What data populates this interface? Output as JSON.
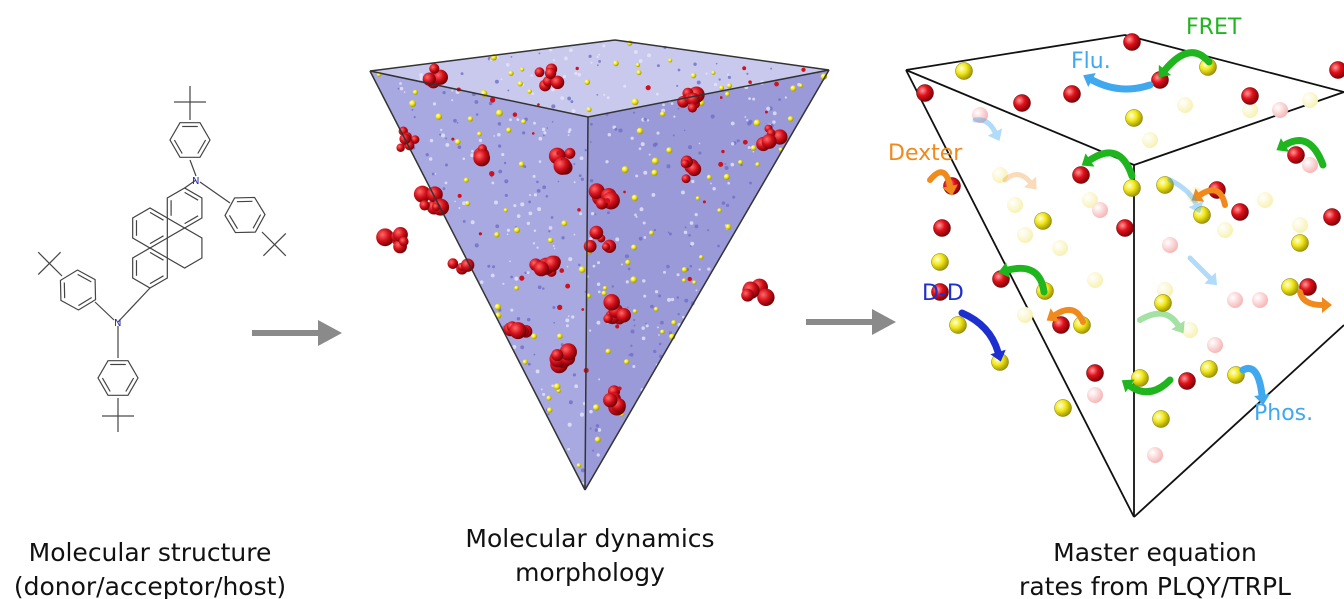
{
  "structure": {
    "atom_label": "N"
  },
  "captions": {
    "left": {
      "line1": "Molecular structure",
      "line2": "(donor/acceptor/host)"
    },
    "middle": {
      "line1": "Molecular dynamics",
      "line2": "morphology"
    },
    "right": {
      "line1": "Master equation",
      "line2": "rates from PLQY/TRPL"
    }
  },
  "processes": {
    "fret": {
      "label": "FRET",
      "color": "#1fb51f"
    },
    "flu": {
      "label": "Flu.",
      "color": "#3fa8ee"
    },
    "dexter": {
      "label": "Dexter",
      "color": "#f08a1c"
    },
    "dd": {
      "label": "D-D",
      "color": "#1d2fcf"
    },
    "phos": {
      "label": "Phos.",
      "color": "#3fa8ee"
    }
  },
  "colors": {
    "acceptor": "#e0101a",
    "donor": "#f2e81a",
    "host": "#8e8ee0",
    "arrow": "#8a8a8a"
  }
}
